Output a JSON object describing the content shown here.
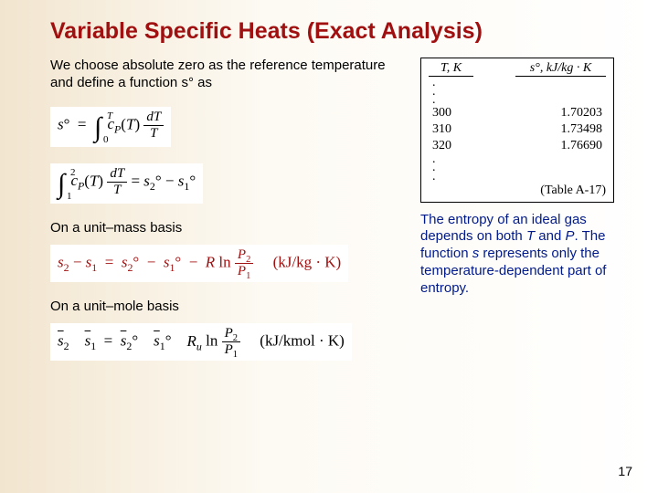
{
  "title": "Variable Specific Heats (Exact Analysis)",
  "intro": "We choose absolute zero as the reference temperature and define a function s° as",
  "subhead_mass": "On a unit–mass basis",
  "subhead_mole": "On a unit–mole basis",
  "eq1_html": "<i>s</i>° &nbsp;=&nbsp; <span class='intg'>∫<span class='lb'>0</span><span class='ub'><i>T</i></span></span>&nbsp;<i>c<sub>P</sub></i>(<i>T</i>)&nbsp;<span class='frac'><span class='num'><i>dT</i></span><span class='den'><i>T</i></span></span>",
  "eq2_html": "<span class='intg'>∫<span class='lb'>1</span><span class='ub'>2</span></span>&nbsp;<i>c<sub>P</sub></i>(<i>T</i>)&nbsp;<span class='frac'><span class='num'><i>dT</i></span><span class='den'><i>T</i></span></span>&nbsp;=&nbsp;<i>s</i><sub>2</sub>°&nbsp;&minus;&nbsp;<i>s</i><sub>1</sub>°",
  "eq3_html": "<i>s</i><sub>2</sub> &minus; <i>s</i><sub>1</sub> &nbsp;=&nbsp; <i>s</i><sub>2</sub>° &nbsp;&minus;&nbsp; <i>s</i><sub>1</sub>° &nbsp;&minus;&nbsp; <i>R</i> ln <span class='frac'><span class='num'><i>P</i><sub>2</sub></span><span class='den'><i>P</i><sub>1</sub></span></span> &nbsp;&nbsp;&nbsp; (kJ/kg · K)",
  "eq4_html": "<span class='bar'><i>s</i></span><sub>2</sub> &nbsp;&nbsp; <span class='bar'><i>s</i></span><sub>1</sub> &nbsp;=&nbsp; <span class='bar'><i>s</i></span><sub>2</sub>° &nbsp;&nbsp; <span class='bar'><i>s</i></span><sub>1</sub>° &nbsp;&nbsp; <i>R<sub>u</sub></i> ln <span class='frac'><span class='num'><i>P</i><sub>2</sub></span><span class='den'><i>P</i><sub>1</sub></span></span> &nbsp;&nbsp;&nbsp; (kJ/kmol · K)",
  "table": {
    "head_T": "T, K",
    "head_s": "s°, kJ/kg · K",
    "rows": [
      {
        "t": "300",
        "s": "1.70203"
      },
      {
        "t": "310",
        "s": "1.73498"
      },
      {
        "t": "320",
        "s": "1.76690"
      }
    ],
    "caption": "(Table A-17)"
  },
  "caption_html": "The entropy of an ideal gas depends on both <i>T</i> and <i>P</i>. The function <i>s</i> represents only the temperature-dependent part of entropy.",
  "page_number": "17",
  "colors": {
    "title": "#a01010",
    "caption": "#001a8c",
    "bg_left": "#f2e5cf",
    "bg_right": "#ffffff"
  }
}
